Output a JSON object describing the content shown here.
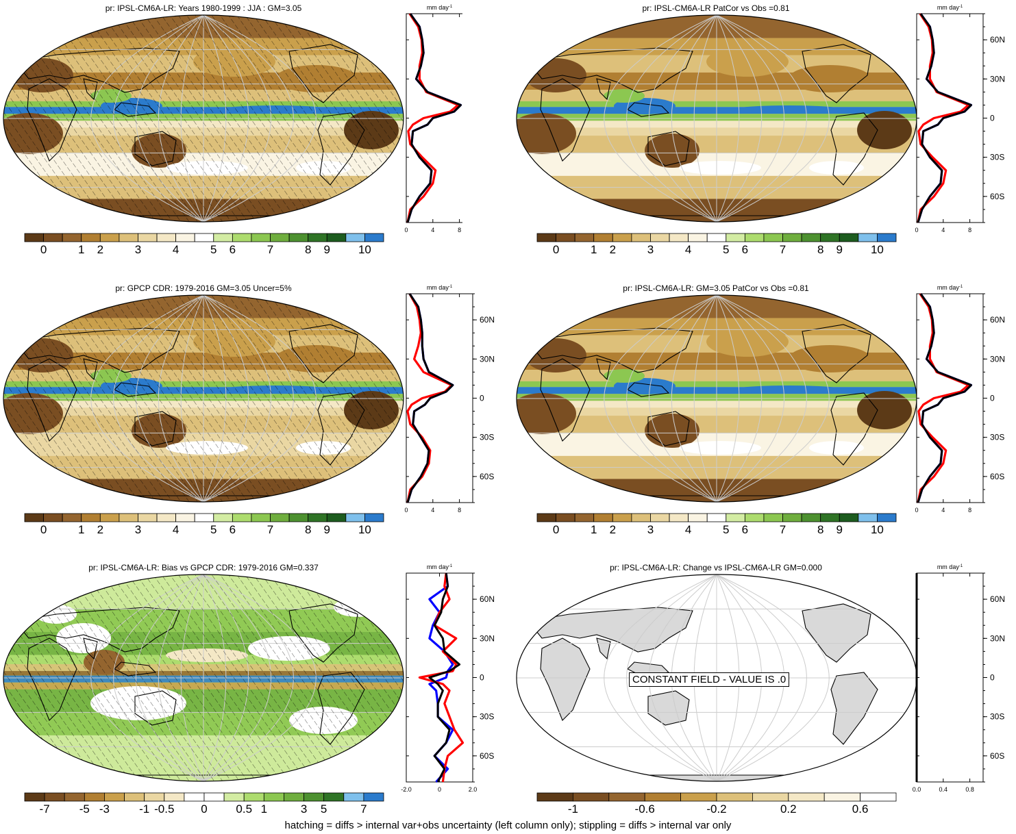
{
  "palettes": {
    "precip": [
      "#5c3a17",
      "#7a4e22",
      "#94652f",
      "#b17f32",
      "#caa04c",
      "#ddc07a",
      "#ead7a3",
      "#f4e8c6",
      "#faf4e3",
      "#ffffff",
      "#d3eca3",
      "#addc6e",
      "#8cc751",
      "#6fae3e",
      "#4d9130",
      "#2f7426",
      "#1d5c1f",
      "#7fc0ec",
      "#2b7bcc"
    ],
    "precip_labels": [
      "0",
      "1",
      "2",
      "3",
      "4",
      "5",
      "6",
      "7",
      "8",
      "9",
      "10"
    ],
    "bias": [
      "#5c3a17",
      "#7a4e22",
      "#94652f",
      "#b17f32",
      "#caa04c",
      "#ddc07a",
      "#ead7a3",
      "#f4e8c6",
      "#ffffff",
      "#ffffff",
      "#d3eca3",
      "#addc6e",
      "#8cc751",
      "#6fae3e",
      "#4d9130",
      "#2f7426",
      "#7fc0ec",
      "#2b7bcc"
    ],
    "bias_labels": [
      "-7",
      "-5",
      "-3",
      "-1",
      "-0.5",
      "0",
      "0.5",
      "1",
      "3",
      "5",
      "7"
    ],
    "change": [
      "#5c3a17",
      "#7a4e22",
      "#94652f",
      "#b17f32",
      "#caa04c",
      "#ddc07a",
      "#ead7a3",
      "#f4e8c6",
      "#faf4e3",
      "#ffffff"
    ],
    "change_labels": [
      "-1",
      "-0.6",
      "-0.2",
      "0.2",
      "0.6"
    ]
  },
  "zonal_axis": {
    "unit_label": "mm day",
    "unit_exp": "-1",
    "lat_labels": [
      "60N",
      "30N",
      "0",
      "30S",
      "60S"
    ]
  },
  "panels": [
    {
      "title": "pr: IPSL-CM6A-LR: Years 1980-1999 : JJA : GM=3.05",
      "style": "precip",
      "hatched": true,
      "palette": "precip",
      "labels_key": "precip_labels",
      "xticks": [
        "0",
        "4",
        "8"
      ],
      "xlim": [
        0,
        10
      ]
    },
    {
      "title": "pr: IPSL-CM6A-LR PatCor vs Obs =0.81",
      "style": "precip",
      "hatched": false,
      "palette": "precip",
      "labels_key": "precip_labels",
      "xticks": [
        "0",
        "4",
        "8"
      ],
      "xlim": [
        0,
        10
      ]
    },
    {
      "title": "pr: GPCP CDR: 1979-2016 GM=3.05 Uncer=5%",
      "style": "precip_obs",
      "hatched": true,
      "palette": "precip",
      "labels_key": "precip_labels",
      "xticks": [
        "0",
        "4",
        "8"
      ],
      "xlim": [
        0,
        10
      ]
    },
    {
      "title": "pr: IPSL-CM6A-LR: GM=3.05 PatCor vs Obs =0.81",
      "style": "precip",
      "hatched": false,
      "palette": "precip",
      "labels_key": "precip_labels",
      "xticks": [
        "0",
        "4",
        "8"
      ],
      "xlim": [
        0,
        10
      ]
    },
    {
      "title": "pr: IPSL-CM6A-LR: Bias vs GPCP CDR: 1979-2016 GM=0.337",
      "style": "bias",
      "hatched": true,
      "palette": "bias",
      "labels_key": "bias_labels",
      "xticks": [
        "-2.0",
        "0",
        "2.0"
      ],
      "xlim": [
        -2,
        2
      ]
    },
    {
      "title": "pr: IPSL-CM6A-LR: Change vs IPSL-CM6A-LR GM=0.000",
      "style": "constant",
      "hatched": false,
      "palette": "change",
      "labels_key": "change_labels",
      "xticks": [
        "0.0",
        "0.4",
        "0.8"
      ],
      "xlim": [
        0,
        1
      ],
      "constant_label": "CONSTANT FIELD - VALUE IS .0"
    }
  ],
  "footnote": "hatching = diffs > internal var+obs uncertainty (left column only); stippling = diffs > internal var only",
  "chart_data": {
    "type": "line",
    "latitude": [
      80,
      70,
      60,
      50,
      40,
      30,
      20,
      10,
      5,
      0,
      -5,
      -10,
      -20,
      -30,
      -40,
      -50,
      -60,
      -70,
      -80
    ],
    "panels": [
      {
        "title": "pr: IPSL-CM6A-LR: Years 1980-1999 : JJA : GM=3.05",
        "xlim": [
          0,
          10
        ],
        "series": [
          {
            "color": "#0000ff",
            "values": [
              0.6,
              2.0,
              2.4,
              2.6,
              2.2,
              1.5,
              3.2,
              8.2,
              7.2,
              4.0,
              3.2,
              1.0,
              0.8,
              2.0,
              3.8,
              3.6,
              2.0,
              0.8,
              0.2
            ]
          },
          {
            "color": "#ff0000",
            "values": [
              0.5,
              1.8,
              2.3,
              2.4,
              2.0,
              2.0,
              3.0,
              7.8,
              6.6,
              2.6,
              1.0,
              0.3,
              0.6,
              2.4,
              4.4,
              4.0,
              2.6,
              0.6,
              0.2
            ]
          },
          {
            "color": "#000000",
            "values": [
              0.6,
              2.0,
              2.4,
              2.6,
              2.2,
              1.5,
              3.2,
              8.2,
              7.2,
              4.0,
              3.2,
              1.0,
              0.8,
              2.0,
              3.8,
              3.6,
              2.0,
              0.8,
              0.2
            ]
          }
        ]
      },
      {
        "title": "pr: IPSL-CM6A-LR PatCor vs Obs =0.81",
        "xlim": [
          0,
          10
        ],
        "series": [
          {
            "color": "#0000ff",
            "values": [
              0.6,
              2.0,
              2.4,
              2.6,
              2.2,
              1.5,
              3.2,
              8.2,
              7.2,
              4.0,
              3.2,
              1.0,
              0.8,
              2.0,
              3.8,
              3.6,
              2.0,
              0.8,
              0.2
            ]
          },
          {
            "color": "#ff0000",
            "values": [
              0.5,
              1.8,
              2.3,
              2.4,
              2.0,
              2.0,
              3.0,
              7.8,
              6.6,
              2.6,
              1.0,
              0.3,
              0.6,
              2.4,
              4.4,
              4.0,
              2.6,
              0.6,
              0.2
            ]
          },
          {
            "color": "#000000",
            "values": [
              0.6,
              2.0,
              2.4,
              2.6,
              2.2,
              1.5,
              3.2,
              8.2,
              7.2,
              4.0,
              3.2,
              1.0,
              0.8,
              2.0,
              3.8,
              3.6,
              2.0,
              0.8,
              0.2
            ]
          }
        ]
      },
      {
        "title": "pr: GPCP CDR: 1979-2016 GM=3.05 Uncer=5%",
        "xlim": [
          0,
          10
        ],
        "series": [
          {
            "color": "#0000ff",
            "values": [
              0.5,
              1.8,
              2.2,
              2.4,
              2.4,
              2.6,
              3.4,
              7.0,
              6.0,
              3.6,
              2.8,
              1.2,
              1.0,
              2.2,
              3.4,
              3.2,
              2.2,
              0.8,
              0.2
            ]
          },
          {
            "color": "#ff0000",
            "values": [
              0.5,
              1.6,
              2.0,
              2.2,
              1.8,
              1.2,
              2.6,
              6.8,
              5.8,
              2.4,
              0.8,
              0.2,
              0.6,
              2.4,
              3.6,
              3.4,
              2.4,
              0.6,
              0.2
            ]
          },
          {
            "color": "#000000",
            "values": [
              0.5,
              1.8,
              2.2,
              2.4,
              2.4,
              2.6,
              3.4,
              7.0,
              6.0,
              3.6,
              2.8,
              1.2,
              1.0,
              2.2,
              3.4,
              3.2,
              2.2,
              0.8,
              0.2
            ]
          }
        ]
      },
      {
        "title": "pr: IPSL-CM6A-LR: GM=3.05 PatCor vs Obs =0.81",
        "xlim": [
          0,
          10
        ],
        "series": [
          {
            "color": "#0000ff",
            "values": [
              0.6,
              2.0,
              2.4,
              2.6,
              2.2,
              1.5,
              3.2,
              8.2,
              7.2,
              4.0,
              3.2,
              1.0,
              0.8,
              2.0,
              3.8,
              3.6,
              2.0,
              0.8,
              0.2
            ]
          },
          {
            "color": "#ff0000",
            "values": [
              0.5,
              1.8,
              2.3,
              2.4,
              2.0,
              2.0,
              3.0,
              7.8,
              6.6,
              2.6,
              1.0,
              0.3,
              0.6,
              2.4,
              4.4,
              4.0,
              2.6,
              0.6,
              0.2
            ]
          },
          {
            "color": "#000000",
            "values": [
              0.6,
              2.0,
              2.4,
              2.6,
              2.2,
              1.5,
              3.2,
              8.2,
              7.2,
              4.0,
              3.2,
              1.0,
              0.8,
              2.0,
              3.8,
              3.6,
              2.0,
              0.8,
              0.2
            ]
          }
        ]
      },
      {
        "title": "pr: IPSL-CM6A-LR: Bias vs GPCP CDR: 1979-2016 GM=0.337",
        "xlim": [
          -2,
          2
        ],
        "series": [
          {
            "color": "#0000ff",
            "values": [
              0.4,
              0.5,
              -0.6,
              0.0,
              -0.4,
              -0.6,
              0.3,
              0.8,
              0.5,
              0.4,
              -0.6,
              -0.2,
              -0.1,
              -0.1,
              0.8,
              0.4,
              -0.3,
              0.5,
              -0.2
            ]
          },
          {
            "color": "#ff0000",
            "values": [
              0.4,
              0.3,
              0.6,
              0.0,
              -0.3,
              1.0,
              0.2,
              1.0,
              0.8,
              -1.2,
              0.2,
              0.6,
              0.3,
              0.6,
              0.9,
              1.4,
              0.5,
              0.3,
              0.2
            ]
          },
          {
            "color": "#000000",
            "values": [
              0.4,
              0.5,
              0.2,
              0.1,
              -0.3,
              0.2,
              0.3,
              1.2,
              0.6,
              -0.6,
              -0.1,
              0.2,
              -0.1,
              -0.1,
              0.6,
              0.4,
              -0.3,
              0.3,
              -0.1
            ]
          }
        ]
      },
      {
        "title": "pr: IPSL-CM6A-LR: Change vs IPSL-CM6A-LR GM=0.000",
        "xlim": [
          0,
          1
        ],
        "series": [
          {
            "color": "#000000",
            "values": [
              0,
              0,
              0,
              0,
              0,
              0,
              0,
              0,
              0,
              0,
              0,
              0,
              0,
              0,
              0,
              0,
              0,
              0,
              0
            ]
          }
        ]
      }
    ]
  }
}
